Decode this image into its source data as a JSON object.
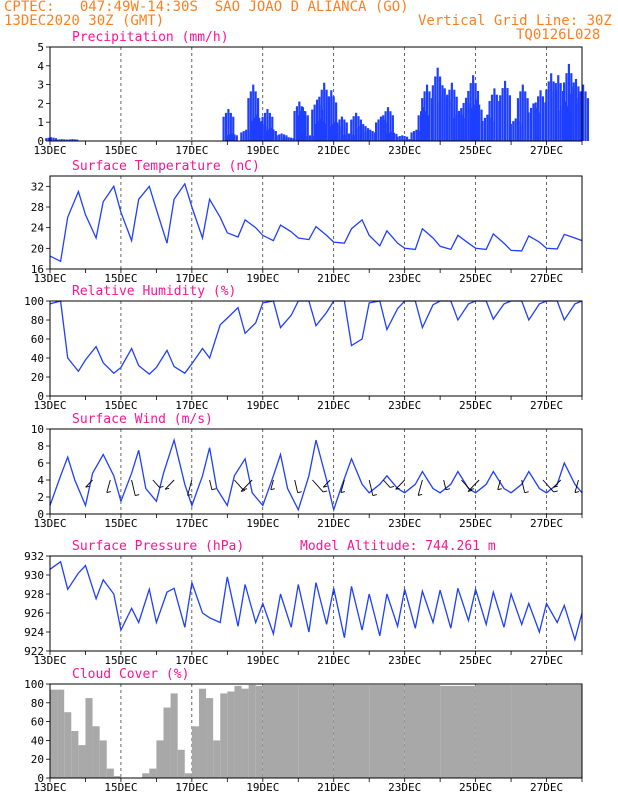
{
  "header": {
    "source": "CPTEC:",
    "location": "047:49W-14:30S  SAO JOAO D ALIANCA (GO)",
    "run": "13DEC2020 30Z (GMT)",
    "grid_note": "Vertical Grid Line: 30Z",
    "model_code": "TQ0126L028"
  },
  "colors": {
    "header": "#ff7f1f",
    "title": "#ff1493",
    "series": "#1f3fff",
    "cloud": "#a8a8a8"
  },
  "x_ticks": [
    "13DEC",
    "15DEC",
    "17DEC",
    "19DEC",
    "21DEC",
    "23DEC",
    "25DEC",
    "27DEC"
  ],
  "chart_data": [
    {
      "type": "bar",
      "title": "Precipitation (mm/h)",
      "ylim": [
        0,
        5
      ],
      "y_ticks": [
        0,
        1,
        2,
        3,
        4,
        5
      ],
      "x_range_days": [
        13,
        28
      ],
      "grid": "vertical dashed at 30Z",
      "segments": [
        {
          "x": [
            13.0,
            13.3,
            13.6,
            18.0,
            18.1,
            18.5,
            18.7,
            18.8,
            18.9,
            19.1,
            19.2,
            19.5,
            19.7,
            20.0,
            20.1,
            20.3,
            20.5,
            20.6,
            20.7,
            20.9,
            21.0,
            21.2,
            21.4,
            21.6,
            21.8,
            22.0,
            22.3,
            22.5,
            22.6,
            22.9,
            23.1,
            23.3,
            23.5,
            23.6,
            23.9,
            24.1,
            24.3,
            24.5,
            24.7,
            24.9,
            25.0,
            25.3,
            25.5,
            25.8,
            26.1,
            26.3,
            26.6,
            26.8,
            27.1,
            27.3,
            27.5,
            27.6,
            27.8,
            28.0
          ],
          "values": [
            0.2,
            0.1,
            0.1,
            1.7,
            0.4,
            0.6,
            3.0,
            1.4,
            1.0,
            1.7,
            0.7,
            0.4,
            0.2,
            2.1,
            1.8,
            0.3,
            2.2,
            1.2,
            3.1,
            2.7,
            1.0,
            1.3,
            0.4,
            1.5,
            0.9,
            0.6,
            1.3,
            1.8,
            0.5,
            0.3,
            0.1,
            0.6,
            1.8,
            3.0,
            3.9,
            2.8,
            3.1,
            1.6,
            2.3,
            3.5,
            2.2,
            1.4,
            2.8,
            3.2,
            1.2,
            3.0,
            2.0,
            2.7,
            3.6,
            3.5,
            2.1,
            4.1,
            3.3,
            3.0
          ]
        }
      ]
    },
    {
      "type": "line",
      "title": "Surface Temperature (nC)",
      "ylim": [
        16,
        34
      ],
      "y_ticks": [
        16,
        20,
        24,
        28,
        32
      ],
      "x_range_days": [
        13,
        28
      ],
      "x": [
        13.0,
        13.3,
        13.5,
        13.8,
        14.0,
        14.3,
        14.5,
        14.8,
        15.0,
        15.3,
        15.5,
        15.8,
        16.0,
        16.3,
        16.5,
        16.8,
        17.0,
        17.3,
        17.5,
        17.8,
        18.0,
        18.3,
        18.5,
        18.8,
        19.0,
        19.3,
        19.5,
        19.8,
        20.0,
        20.3,
        20.5,
        20.8,
        21.0,
        21.3,
        21.5,
        21.8,
        22.0,
        22.3,
        22.5,
        22.8,
        23.0,
        23.3,
        23.5,
        23.8,
        24.0,
        24.3,
        24.5,
        24.8,
        25.0,
        25.3,
        25.5,
        25.8,
        26.0,
        26.3,
        26.5,
        26.8,
        27.0,
        27.3,
        27.5,
        27.8,
        28.0
      ],
      "values": [
        18.5,
        17.5,
        26.0,
        31.0,
        26.5,
        22.0,
        29.0,
        32.0,
        27.0,
        21.5,
        29.5,
        32.0,
        27.5,
        21.0,
        29.5,
        32.5,
        28.0,
        22.0,
        29.5,
        26.0,
        23.0,
        22.2,
        25.5,
        24.0,
        22.5,
        21.5,
        24.5,
        23.2,
        22.0,
        21.7,
        24.2,
        22.5,
        21.2,
        21.0,
        23.8,
        25.5,
        22.5,
        20.5,
        23.4,
        21.0,
        20.0,
        19.8,
        23.8,
        22.0,
        20.4,
        19.8,
        22.5,
        21.0,
        20.0,
        19.8,
        22.8,
        21.0,
        19.6,
        19.5,
        22.4,
        21.2,
        20.0,
        19.9,
        22.7,
        22.0,
        21.5
      ]
    },
    {
      "type": "line",
      "title": "Relative Humidity (%)",
      "ylim": [
        0,
        100
      ],
      "y_ticks": [
        0,
        20,
        40,
        60,
        80,
        100
      ],
      "x_range_days": [
        13,
        28
      ],
      "x": [
        13.0,
        13.3,
        13.5,
        13.8,
        14.0,
        14.3,
        14.5,
        14.8,
        15.0,
        15.3,
        15.5,
        15.8,
        16.0,
        16.3,
        16.5,
        16.8,
        17.0,
        17.3,
        17.5,
        17.8,
        18.0,
        18.3,
        18.5,
        18.8,
        19.0,
        19.3,
        19.5,
        19.8,
        20.0,
        20.3,
        20.5,
        20.8,
        21.0,
        21.3,
        21.5,
        21.8,
        22.0,
        22.3,
        22.5,
        22.8,
        23.0,
        23.3,
        23.5,
        23.8,
        24.0,
        24.3,
        24.5,
        24.8,
        25.0,
        25.3,
        25.5,
        25.8,
        26.0,
        26.3,
        26.5,
        26.8,
        27.0,
        27.3,
        27.5,
        27.8,
        28.0
      ],
      "values": [
        97,
        100,
        40,
        26,
        38,
        52,
        35,
        24,
        30,
        50,
        32,
        23,
        30,
        48,
        31,
        24,
        34,
        50,
        40,
        75,
        82,
        93,
        66,
        77,
        98,
        100,
        72,
        85,
        100,
        100,
        74,
        88,
        100,
        100,
        53,
        60,
        98,
        100,
        70,
        92,
        100,
        100,
        72,
        96,
        100,
        100,
        80,
        97,
        100,
        100,
        81,
        97,
        100,
        100,
        80,
        97,
        100,
        100,
        80,
        97,
        100
      ]
    },
    {
      "type": "line",
      "title": "Surface Wind (m/s)",
      "ylim": [
        0,
        10
      ],
      "y_ticks": [
        0,
        2,
        4,
        6,
        8,
        10
      ],
      "x_range_days": [
        13,
        28
      ],
      "note": "speed line with wind direction arrows",
      "x": [
        13.0,
        13.3,
        13.5,
        13.7,
        14.0,
        14.2,
        14.5,
        14.8,
        15.0,
        15.3,
        15.5,
        15.7,
        16.0,
        16.2,
        16.5,
        16.8,
        17.0,
        17.3,
        17.5,
        17.7,
        18.0,
        18.2,
        18.5,
        18.7,
        19.0,
        19.3,
        19.5,
        19.7,
        20.0,
        20.3,
        20.5,
        20.8,
        21.0,
        21.2,
        21.5,
        21.8,
        22.0,
        22.3,
        22.5,
        22.8,
        23.0,
        23.3,
        23.5,
        23.8,
        24.0,
        24.3,
        24.5,
        24.8,
        25.0,
        25.3,
        25.5,
        25.8,
        26.0,
        26.3,
        26.5,
        26.8,
        27.0,
        27.3,
        27.5,
        27.8,
        28.0
      ],
      "values": [
        1.0,
        4.5,
        6.7,
        4.0,
        1.0,
        4.8,
        7.0,
        4.5,
        1.5,
        4.8,
        7.5,
        3.0,
        1.5,
        4.8,
        8.7,
        3.5,
        1.0,
        4.5,
        7.8,
        3.0,
        1.0,
        4.5,
        6.5,
        2.5,
        1.0,
        4.5,
        7.0,
        3.0,
        0.5,
        4.5,
        8.7,
        4.0,
        0.5,
        3.0,
        6.5,
        3.5,
        2.5,
        3.5,
        4.5,
        3.0,
        2.5,
        3.5,
        5.0,
        3.0,
        2.5,
        3.5,
        5.0,
        3.0,
        2.5,
        3.5,
        5.0,
        3.0,
        2.5,
        3.5,
        5.0,
        3.0,
        2.5,
        3.5,
        6.0,
        3.5,
        2.5
      ]
    },
    {
      "type": "line",
      "title": "Surface Pressure (hPa)",
      "subtitle": "Model Altitude: 744.261 m",
      "ylim": [
        922,
        932
      ],
      "y_ticks": [
        922,
        924,
        926,
        928,
        930,
        932
      ],
      "x_range_days": [
        13,
        28
      ],
      "x": [
        13.0,
        13.3,
        13.5,
        13.8,
        14.0,
        14.3,
        14.5,
        14.8,
        15.0,
        15.3,
        15.5,
        15.8,
        16.0,
        16.3,
        16.5,
        16.8,
        17.0,
        17.3,
        17.5,
        17.8,
        18.0,
        18.3,
        18.5,
        18.8,
        19.0,
        19.3,
        19.5,
        19.8,
        20.0,
        20.3,
        20.5,
        20.8,
        21.0,
        21.3,
        21.5,
        21.8,
        22.0,
        22.3,
        22.5,
        22.8,
        23.0,
        23.3,
        23.5,
        23.8,
        24.0,
        24.3,
        24.5,
        24.8,
        25.0,
        25.3,
        25.5,
        25.8,
        26.0,
        26.3,
        26.5,
        26.8,
        27.0,
        27.3,
        27.5,
        27.8,
        28.0
      ],
      "values": [
        930.6,
        931.4,
        928.5,
        930.2,
        931.0,
        927.5,
        929.5,
        928.0,
        924.2,
        926.5,
        925.0,
        928.5,
        925.0,
        928.2,
        928.6,
        924.5,
        929.2,
        926.0,
        925.5,
        925.0,
        929.8,
        924.6,
        929.0,
        925.0,
        927.0,
        923.8,
        928.0,
        924.5,
        929.0,
        924.0,
        929.2,
        924.8,
        928.6,
        923.4,
        928.8,
        924.2,
        928.0,
        923.6,
        928.0,
        924.6,
        928.5,
        924.4,
        928.3,
        925.0,
        928.4,
        924.4,
        928.6,
        925.2,
        928.5,
        924.8,
        928.2,
        924.5,
        928.0,
        924.8,
        927.0,
        924.0,
        927.0,
        925.0,
        926.8,
        923.2,
        926.0
      ]
    },
    {
      "type": "area",
      "title": "Cloud Cover (%)",
      "ylim": [
        0,
        100
      ],
      "y_ticks": [
        0,
        20,
        40,
        60,
        80,
        100
      ],
      "x_range_days": [
        13,
        28
      ],
      "x": [
        13.0,
        13.2,
        13.4,
        13.6,
        13.8,
        14.0,
        14.2,
        14.4,
        14.6,
        14.8,
        15.0,
        15.2,
        15.4,
        15.6,
        15.8,
        16.0,
        16.2,
        16.4,
        16.6,
        16.8,
        17.0,
        17.2,
        17.4,
        17.6,
        17.8,
        18.0,
        18.2,
        18.4,
        18.6,
        18.8,
        19.0,
        20.0,
        21.0,
        22.0,
        23.0,
        24.0,
        25.0,
        26.0,
        27.0,
        28.0
      ],
      "values": [
        94,
        94,
        70,
        50,
        35,
        85,
        55,
        40,
        10,
        2,
        0,
        0,
        0,
        5,
        10,
        40,
        75,
        90,
        30,
        5,
        55,
        95,
        85,
        40,
        90,
        92,
        98,
        95,
        99,
        98,
        99,
        99,
        99,
        99,
        99,
        98,
        99,
        99,
        99,
        99
      ]
    }
  ]
}
